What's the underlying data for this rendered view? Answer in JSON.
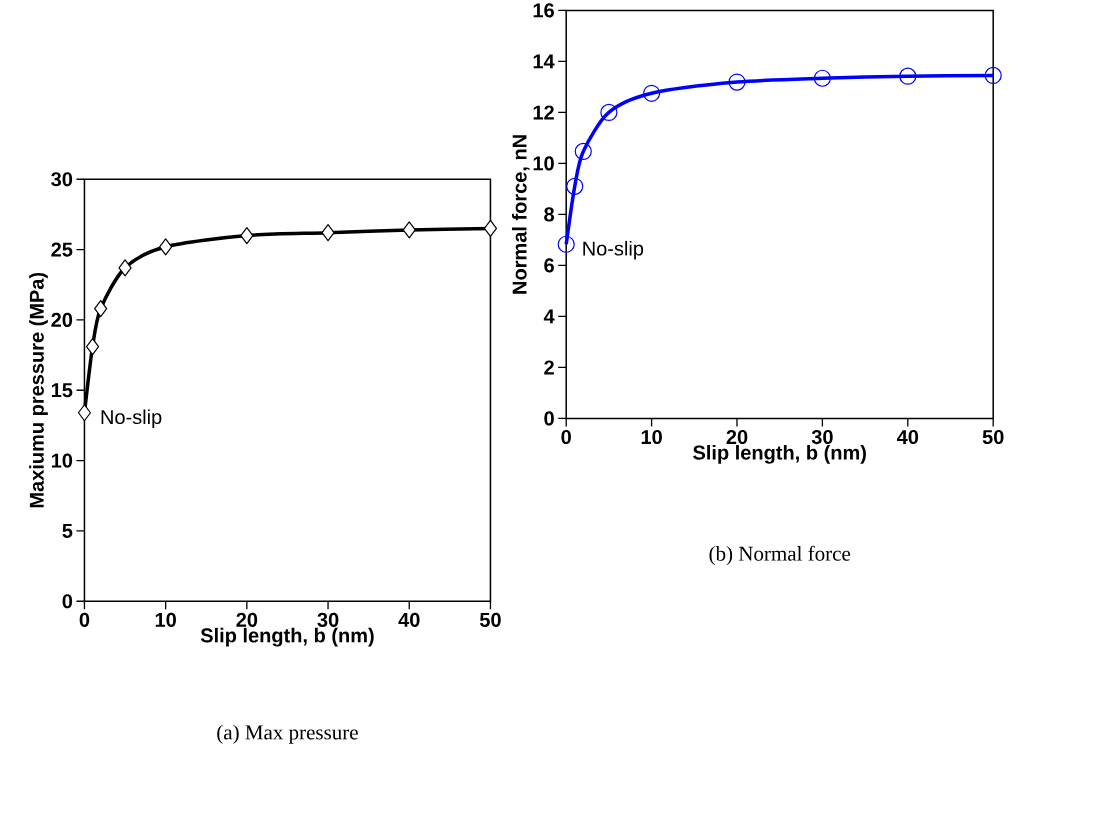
{
  "chart_data": [
    {
      "type": "line",
      "xlabel": "Slip length, b (nm)",
      "ylabel": "Maxiumu pressure (MPa)",
      "x": [
        0,
        1,
        2,
        5,
        10,
        20,
        30,
        40,
        50
      ],
      "series": [
        {
          "color": "#000000",
          "values": [
            13.4,
            18.1,
            20.8,
            23.7,
            25.2,
            26.0,
            26.2,
            26.4,
            26.5
          ]
        }
      ],
      "marker": "diamond",
      "xlim": [
        0,
        50
      ],
      "ylim": [
        0,
        30
      ],
      "xticks": [
        0,
        10,
        20,
        30,
        40,
        50
      ],
      "yticks": [
        0,
        5,
        10,
        15,
        20,
        25,
        30
      ],
      "annotations": [
        {
          "text": "No-slip",
          "x": 0,
          "y": 13.4
        },
        "(a)  Max pressure"
      ]
    },
    {
      "type": "line",
      "xlabel": "Slip length, b (nm)",
      "ylabel": "Normal force, nN",
      "x": [
        0,
        1,
        2,
        5,
        10,
        20,
        30,
        40,
        50
      ],
      "series": [
        {
          "color": "#0000ff",
          "values": [
            6.83,
            9.1,
            10.47,
            12.0,
            12.75,
            13.19,
            13.34,
            13.42,
            13.45
          ]
        }
      ],
      "marker": "circle",
      "xlim": [
        0,
        50
      ],
      "ylim": [
        0,
        16
      ],
      "xticks": [
        0,
        10,
        20,
        30,
        40,
        50
      ],
      "yticks": [
        0,
        2,
        4,
        6,
        8,
        10,
        12,
        14,
        16
      ],
      "annotations": [
        {
          "text": "No-slip",
          "x": 0,
          "y": 6.83
        },
        "(b) Normal force"
      ]
    }
  ]
}
